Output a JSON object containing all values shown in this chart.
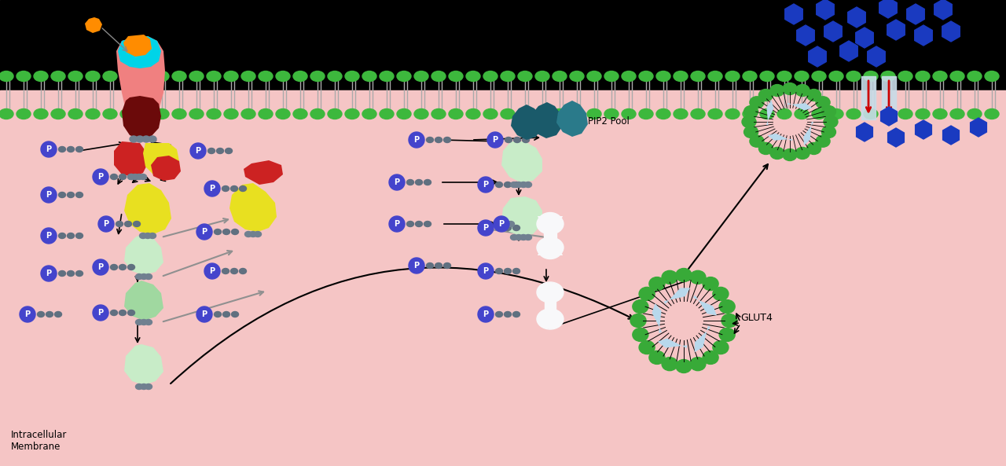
{
  "bg_black": "#000000",
  "bg_pink": "#f5c5c5",
  "mem_green": "#3db83d",
  "mem_grey": "#b0b0b0",
  "colors": {
    "receptor_salmon": "#f08080",
    "receptor_dark": "#6b0a0a",
    "receptor_cyan": "#00d4e8",
    "epinephrine": "#ff8c00",
    "g_red": "#cc2222",
    "g_yellow": "#e8e020",
    "g_green_pale": "#c8ecc8",
    "g_green_mid": "#a0d8a0",
    "pip2_teal_dark": "#1a5a6a",
    "pip2_teal_mid": "#2a7a8a",
    "glut4_green": "#38aa38",
    "glut4_grey": "#b8d8ec",
    "white_protein": "#f8f8fa",
    "p_blue": "#4444cc",
    "p_grey": "#607080",
    "glucose_blue": "#1a3ac0",
    "arrow_black": "#111111",
    "arrow_grey": "#909090",
    "arrow_red": "#cc0000"
  },
  "label_intracellular": "Intracellular\nMembrane",
  "label_pip2": "PIP2 Pool",
  "label_glut4": "GLUT4"
}
